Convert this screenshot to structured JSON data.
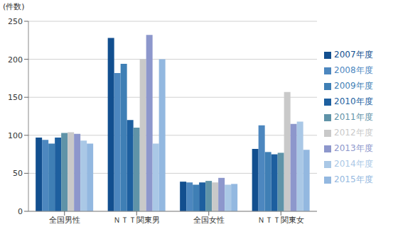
{
  "chart_data": {
    "type": "bar",
    "y_label": "(件数)",
    "categories": [
      "全国男性",
      "ＮＴＴ関東男",
      "全国女性",
      "ＮＴＴ関東女"
    ],
    "series": [
      {
        "name": "2007年度",
        "color": "#124f8f",
        "values": [
          97,
          228,
          39,
          82
        ]
      },
      {
        "name": "2008年度",
        "color": "#4d87bf",
        "values": [
          94,
          182,
          38,
          113
        ]
      },
      {
        "name": "2009年度",
        "color": "#3f7fb5",
        "values": [
          89,
          194,
          35,
          78
        ]
      },
      {
        "name": "2010年度",
        "color": "#1d5f9f",
        "values": [
          97,
          120,
          38,
          75
        ]
      },
      {
        "name": "2011年度",
        "color": "#5f93a8",
        "values": [
          103,
          110,
          40,
          77
        ]
      },
      {
        "name": "2012年度",
        "color": "#c9c9c9",
        "values": [
          104,
          200,
          38,
          157
        ]
      },
      {
        "name": "2013年度",
        "color": "#8d97cc",
        "values": [
          102,
          232,
          44,
          115
        ]
      },
      {
        "name": "2014年度",
        "color": "#aac8e6",
        "values": [
          93,
          89,
          35,
          118
        ]
      },
      {
        "name": "2015年度",
        "color": "#93b8e0",
        "values": [
          89,
          200,
          36,
          81
        ]
      }
    ],
    "ylim": [
      0,
      250
    ],
    "yticks": [
      0,
      50,
      100,
      150,
      200,
      250
    ],
    "grid": true,
    "legend": "right"
  }
}
